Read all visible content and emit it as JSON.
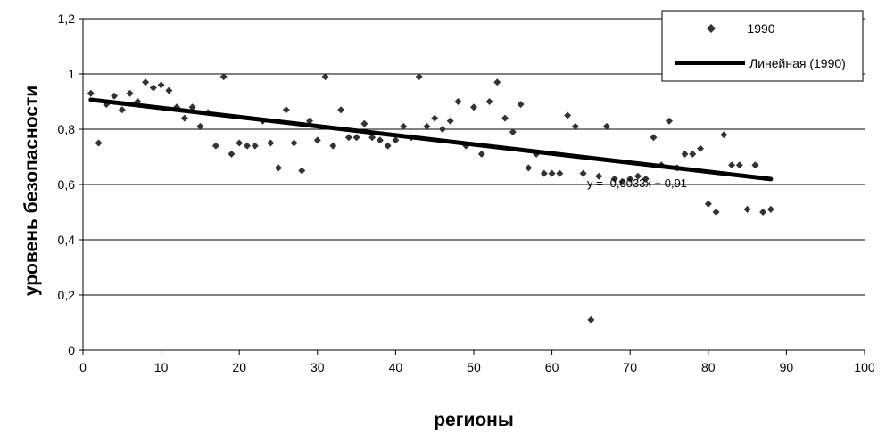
{
  "chart_data": {
    "type": "scatter",
    "title": "",
    "xlabel": "регионы",
    "ylabel": "уровень безопасности",
    "xlim": [
      0,
      100
    ],
    "ylim": [
      0,
      1.2
    ],
    "x_ticks": [
      0,
      10,
      20,
      30,
      40,
      50,
      60,
      70,
      80,
      90,
      100
    ],
    "x_tick_labels": [
      "0",
      "10",
      "20",
      "30",
      "40",
      "50",
      "60",
      "70",
      "80",
      "90",
      "100"
    ],
    "y_ticks": [
      0,
      0.2,
      0.4,
      0.6,
      0.8,
      1.0,
      1.2
    ],
    "y_tick_labels": [
      "0",
      "0,2",
      "0,4",
      "0,6",
      "0,8",
      "1",
      "1,2"
    ],
    "grid": "horizontal",
    "legend_position": "top-right",
    "series": [
      {
        "name": "1990",
        "marker": "diamond",
        "color": "#333333",
        "points": [
          [
            1,
            0.93
          ],
          [
            2,
            0.75
          ],
          [
            3,
            0.89
          ],
          [
            4,
            0.92
          ],
          [
            5,
            0.87
          ],
          [
            6,
            0.93
          ],
          [
            7,
            0.9
          ],
          [
            8,
            0.97
          ],
          [
            9,
            0.95
          ],
          [
            10,
            0.96
          ],
          [
            11,
            0.94
          ],
          [
            12,
            0.88
          ],
          [
            13,
            0.84
          ],
          [
            14,
            0.88
          ],
          [
            15,
            0.81
          ],
          [
            16,
            0.86
          ],
          [
            17,
            0.74
          ],
          [
            18,
            0.99
          ],
          [
            19,
            0.71
          ],
          [
            20,
            0.75
          ],
          [
            21,
            0.74
          ],
          [
            22,
            0.74
          ],
          [
            23,
            0.83
          ],
          [
            24,
            0.75
          ],
          [
            25,
            0.66
          ],
          [
            26,
            0.87
          ],
          [
            27,
            0.75
          ],
          [
            28,
            0.65
          ],
          [
            29,
            0.83
          ],
          [
            30,
            0.76
          ],
          [
            31,
            0.99
          ],
          [
            32,
            0.74
          ],
          [
            33,
            0.87
          ],
          [
            34,
            0.77
          ],
          [
            35,
            0.77
          ],
          [
            36,
            0.82
          ],
          [
            37,
            0.77
          ],
          [
            38,
            0.76
          ],
          [
            39,
            0.74
          ],
          [
            40,
            0.76
          ],
          [
            41,
            0.81
          ],
          [
            42,
            0.77
          ],
          [
            43,
            0.99
          ],
          [
            44,
            0.81
          ],
          [
            45,
            0.84
          ],
          [
            46,
            0.8
          ],
          [
            47,
            0.83
          ],
          [
            48,
            0.9
          ],
          [
            49,
            0.74
          ],
          [
            50,
            0.88
          ],
          [
            51,
            0.71
          ],
          [
            52,
            0.9
          ],
          [
            53,
            0.97
          ],
          [
            54,
            0.84
          ],
          [
            55,
            0.79
          ],
          [
            56,
            0.89
          ],
          [
            57,
            0.66
          ],
          [
            58,
            0.71
          ],
          [
            59,
            0.64
          ],
          [
            60,
            0.64
          ],
          [
            61,
            0.64
          ],
          [
            62,
            0.85
          ],
          [
            63,
            0.81
          ],
          [
            64,
            0.64
          ],
          [
            65,
            0.11
          ],
          [
            66,
            0.63
          ],
          [
            67,
            0.81
          ],
          [
            68,
            0.62
          ],
          [
            69,
            0.61
          ],
          [
            70,
            0.62
          ],
          [
            71,
            0.63
          ],
          [
            72,
            0.62
          ],
          [
            73,
            0.77
          ],
          [
            74,
            0.67
          ],
          [
            75,
            0.83
          ],
          [
            76,
            0.66
          ],
          [
            77,
            0.71
          ],
          [
            78,
            0.71
          ],
          [
            79,
            0.73
          ],
          [
            80,
            0.53
          ],
          [
            81,
            0.5
          ],
          [
            82,
            0.78
          ],
          [
            83,
            0.67
          ],
          [
            84,
            0.67
          ],
          [
            85,
            0.51
          ],
          [
            86,
            0.67
          ],
          [
            87,
            0.5
          ],
          [
            88,
            0.51
          ]
        ]
      }
    ],
    "trendline": {
      "name": "Линейная (1990)",
      "slope": -0.0033,
      "intercept": 0.91,
      "x_range": [
        1,
        88
      ],
      "color": "#000000",
      "equation_label": "y = -0,0033x + 0,91"
    }
  }
}
